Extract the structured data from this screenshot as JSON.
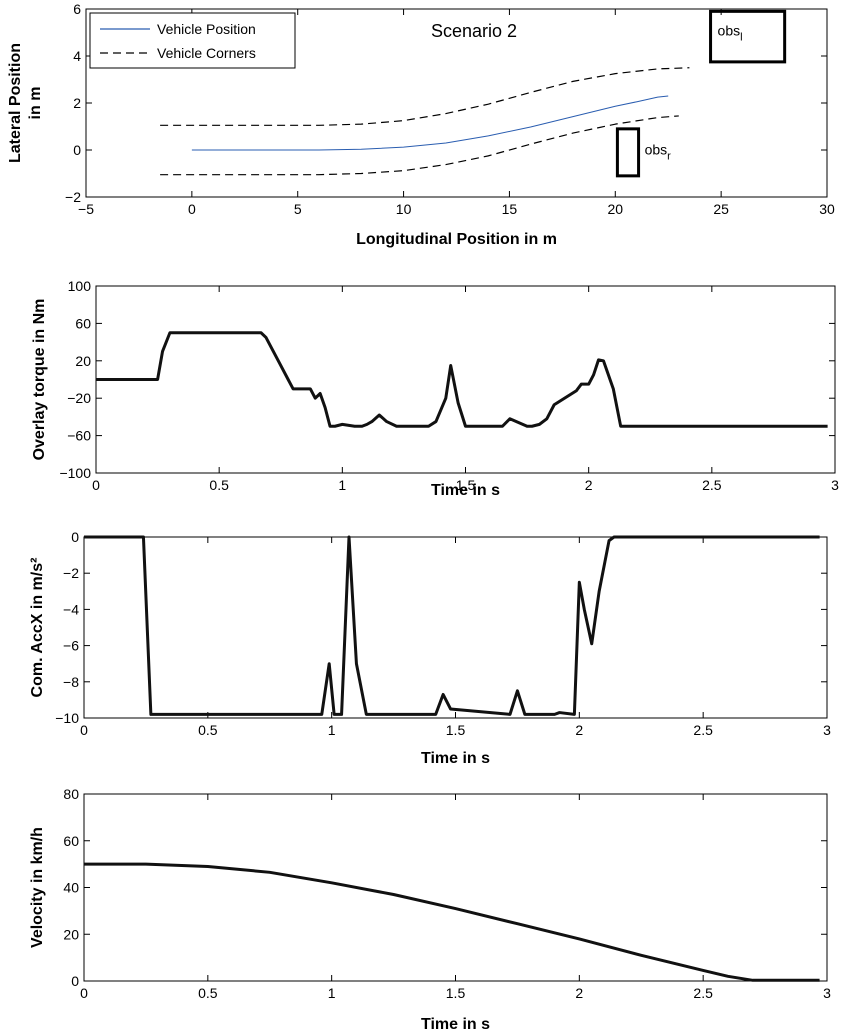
{
  "chart_data": [
    {
      "type": "line",
      "title": "Scenario 2",
      "xlabel": "Longitudinal Position in m",
      "ylabel": [
        "Lateral Position",
        "in m"
      ],
      "xlim": [
        -5,
        30
      ],
      "ylim": [
        -2,
        6
      ],
      "xticks": [
        -5,
        0,
        5,
        10,
        15,
        20,
        25,
        30
      ],
      "yticks": [
        -2,
        0,
        2,
        4,
        6
      ],
      "xtick_labels": [
        "−5",
        "0",
        "5",
        "10",
        "15",
        "20",
        "25",
        "30"
      ],
      "ytick_labels": [
        "−2",
        "0",
        "2",
        "4",
        "6"
      ],
      "legend": {
        "placement": "top-left",
        "entries": [
          {
            "label": "Vehicle Position",
            "style": "solid",
            "color": "#2a5db0"
          },
          {
            "label": "Vehicle Corners",
            "style": "dashed",
            "color": "#000000"
          }
        ]
      },
      "series": [
        {
          "name": "Vehicle Position",
          "style": "solid",
          "color": "#2a5db0",
          "x": [
            0,
            2,
            4,
            6,
            8,
            10,
            12,
            14,
            16,
            18,
            20,
            21,
            22,
            22.5
          ],
          "y": [
            0,
            0,
            0,
            0,
            0.03,
            0.12,
            0.3,
            0.6,
            0.98,
            1.42,
            1.86,
            2.05,
            2.25,
            2.3
          ]
        },
        {
          "name": "Vehicle Corners",
          "style": "dashed",
          "color": "#000000",
          "x": [
            -1.5,
            2,
            6,
            8,
            10,
            12,
            14,
            16,
            18,
            20,
            22,
            23.5
          ],
          "y": [
            1.05,
            1.05,
            1.05,
            1.1,
            1.25,
            1.55,
            1.95,
            2.45,
            2.92,
            3.25,
            3.45,
            3.5
          ]
        },
        {
          "name": "Vehicle Corners",
          "style": "dashed",
          "color": "#000000",
          "x": [
            -1.5,
            2,
            6,
            8,
            10,
            12,
            14,
            16,
            18,
            20,
            22,
            23
          ],
          "y": [
            -1.05,
            -1.05,
            -1.05,
            -1.0,
            -0.88,
            -0.62,
            -0.25,
            0.25,
            0.72,
            1.1,
            1.38,
            1.45
          ]
        }
      ],
      "obstacles": [
        {
          "label": "obs",
          "subscript": "l",
          "x0": 24.5,
          "x1": 28,
          "y0": 3.75,
          "y1": 5.9
        },
        {
          "label": "obs",
          "subscript": "r",
          "x0": 20.1,
          "x1": 21.1,
          "y0": -1.1,
          "y1": 0.9
        }
      ]
    },
    {
      "type": "line",
      "title": "",
      "xlabel": "Time in s",
      "ylabel": [
        "Overlay torque in Nm"
      ],
      "xlim": [
        0,
        3
      ],
      "ylim": [
        -100,
        100
      ],
      "xticks": [
        0,
        0.5,
        1,
        1.5,
        2,
        2.5,
        3
      ],
      "yticks": [
        -100,
        -60,
        -20,
        20,
        60,
        100
      ],
      "xtick_labels": [
        "0",
        "0.5",
        "1",
        "1.5",
        "2",
        "2.5",
        "3"
      ],
      "ytick_labels": [
        "−100",
        "−60",
        "−20",
        "20",
        "60",
        "100"
      ],
      "series": [
        {
          "style": "solid",
          "color": "#111111",
          "x": [
            0,
            0.25,
            0.27,
            0.3,
            0.65,
            0.67,
            0.69,
            0.72,
            0.75,
            0.78,
            0.8,
            0.85,
            0.87,
            0.89,
            0.91,
            0.93,
            0.95,
            0.97,
            1.0,
            1.05,
            1.08,
            1.1,
            1.12,
            1.15,
            1.18,
            1.22,
            1.35,
            1.38,
            1.42,
            1.44,
            1.47,
            1.5,
            1.62,
            1.65,
            1.68,
            1.75,
            1.77,
            1.8,
            1.83,
            1.86,
            1.95,
            1.97,
            2.0,
            2.02,
            2.04,
            2.06,
            2.1,
            2.13,
            2.97
          ],
          "y": [
            0,
            0,
            30,
            50,
            50,
            50,
            45,
            30,
            15,
            0,
            -10,
            -10,
            -10,
            -20,
            -15,
            -30,
            -50,
            -50,
            -48,
            -50,
            -50,
            -48,
            -45,
            -38,
            -45,
            -50,
            -50,
            -45,
            -20,
            15,
            -25,
            -50,
            -50,
            -50,
            -42,
            -50,
            -50,
            -48,
            -42,
            -27,
            -12,
            -5,
            -5,
            5,
            21,
            20,
            -10,
            -50,
            -50
          ]
        }
      ]
    },
    {
      "type": "line",
      "title": "",
      "xlabel": "Time in s",
      "ylabel": [
        "Com. AccX in m/s²"
      ],
      "xlim": [
        0,
        3
      ],
      "ylim": [
        -10,
        0
      ],
      "xticks": [
        0,
        0.5,
        1,
        1.5,
        2,
        2.5,
        3
      ],
      "yticks": [
        -10,
        -8,
        -6,
        -4,
        -2,
        0
      ],
      "xtick_labels": [
        "0",
        "0.5",
        "1",
        "1.5",
        "2",
        "2.5",
        "3"
      ],
      "ytick_labels": [
        "−10",
        "−8",
        "−6",
        "−4",
        "−2",
        "0"
      ],
      "series": [
        {
          "style": "solid",
          "color": "#111111",
          "x": [
            0,
            0.24,
            0.27,
            0.96,
            0.99,
            1.01,
            1.04,
            1.07,
            1.1,
            1.14,
            1.42,
            1.45,
            1.48,
            1.72,
            1.75,
            1.78,
            1.9,
            1.92,
            1.98,
            2.0,
            2.02,
            2.05,
            2.08,
            2.12,
            2.14,
            2.97
          ],
          "y": [
            0,
            0,
            -9.8,
            -9.8,
            -7.0,
            -9.8,
            -9.8,
            0,
            -7.0,
            -9.8,
            -9.8,
            -8.7,
            -9.5,
            -9.8,
            -8.5,
            -9.8,
            -9.8,
            -9.7,
            -9.8,
            -2.5,
            -4.0,
            -5.9,
            -3.0,
            -0.2,
            0,
            0
          ]
        }
      ]
    },
    {
      "type": "line",
      "title": "",
      "xlabel": "Time in s",
      "ylabel": [
        "Velocity in km/h"
      ],
      "xlim": [
        0,
        3
      ],
      "ylim": [
        0,
        80
      ],
      "xticks": [
        0,
        0.5,
        1,
        1.5,
        2,
        2.5,
        3
      ],
      "yticks": [
        0,
        20,
        40,
        60,
        80
      ],
      "xtick_labels": [
        "0",
        "0.5",
        "1",
        "1.5",
        "2",
        "2.5",
        "3"
      ],
      "ytick_labels": [
        "0",
        "20",
        "40",
        "60",
        "80"
      ],
      "series": [
        {
          "style": "solid",
          "color": "#111111",
          "x": [
            0,
            0.25,
            0.5,
            0.75,
            1.0,
            1.25,
            1.5,
            1.75,
            2.0,
            2.25,
            2.5,
            2.6,
            2.7,
            2.97
          ],
          "y": [
            50,
            50,
            49,
            46.5,
            42,
            37,
            31,
            24.5,
            18,
            11,
            4.5,
            2,
            0.3,
            0.3
          ]
        }
      ]
    }
  ]
}
